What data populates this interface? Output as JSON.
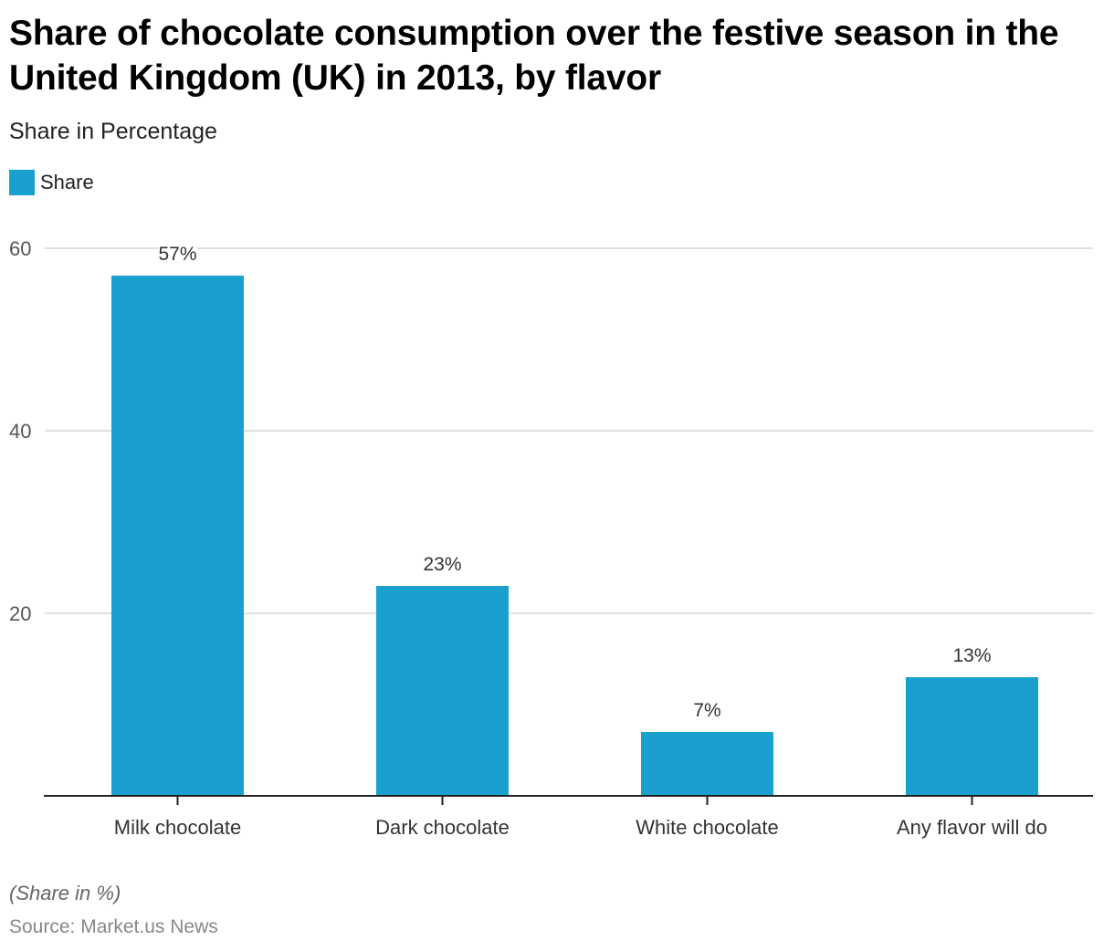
{
  "chart_data": {
    "type": "bar",
    "title": "Share of chocolate consumption over the festive season in the United Kingdom (UK) in 2013, by flavor",
    "subtitle": "Share in Percentage",
    "xlabel": "",
    "ylabel": "",
    "legend": {
      "position": "top-left",
      "entries": [
        "Share"
      ]
    },
    "categories": [
      "Milk chocolate",
      "Dark chocolate",
      "White chocolate",
      "Any flavor will do"
    ],
    "series": [
      {
        "name": "Share",
        "color": "#1aa0cf",
        "values": [
          57,
          23,
          7,
          13
        ]
      }
    ],
    "data_labels": [
      "57%",
      "23%",
      "7%",
      "13%"
    ],
    "yticks": [
      20,
      40,
      60
    ],
    "ylim": [
      0,
      60
    ],
    "grid": true,
    "footnote": "(Share in %)",
    "source": "Source: Market.us News"
  }
}
